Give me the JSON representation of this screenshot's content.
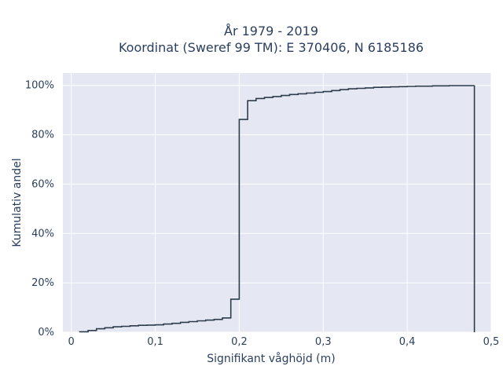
{
  "chart_data": {
    "type": "line",
    "line_shape": "step-cdf",
    "title_line1": "År 1979 - 2019",
    "title_line2": "Koordinat (Sweref 99 TM): E 370406, N 6185186",
    "xlabel": "Signifikant våghöjd (m)",
    "ylabel": "Kumulativ andel",
    "xlim": [
      -0.01,
      0.5
    ],
    "ylim": [
      0,
      1.05
    ],
    "x_ticks": [
      0,
      0.1,
      0.2,
      0.3,
      0.4,
      0.5
    ],
    "x_tick_labels": [
      "0",
      "0,1",
      "0,2",
      "0,3",
      "0,4",
      "0,5"
    ],
    "y_ticks": [
      0,
      0.2,
      0.4,
      0.6,
      0.8,
      1.0
    ],
    "y_tick_labels": [
      "0%",
      "20%",
      "40%",
      "60%",
      "80%",
      "100%"
    ],
    "grid": true,
    "plot_bgcolor": "#e5e8f2",
    "line_color": "#2d3c4c",
    "series": [
      {
        "x": [
          0.01,
          0.02,
          0.03,
          0.04,
          0.05,
          0.06,
          0.07,
          0.08,
          0.09,
          0.1,
          0.11,
          0.12,
          0.13,
          0.14,
          0.15,
          0.16,
          0.17,
          0.18,
          0.19,
          0.2,
          0.21,
          0.22,
          0.23,
          0.24,
          0.25,
          0.26,
          0.27,
          0.28,
          0.29,
          0.3,
          0.31,
          0.32,
          0.33,
          0.34,
          0.35,
          0.36,
          0.37,
          0.38,
          0.39,
          0.4,
          0.41,
          0.42,
          0.43,
          0.44,
          0.45,
          0.46,
          0.47,
          0.48
        ],
        "y": [
          0.002,
          0.007,
          0.014,
          0.018,
          0.022,
          0.024,
          0.026,
          0.028,
          0.029,
          0.03,
          0.033,
          0.036,
          0.04,
          0.043,
          0.046,
          0.049,
          0.052,
          0.058,
          0.134,
          0.862,
          0.938,
          0.947,
          0.951,
          0.955,
          0.959,
          0.963,
          0.966,
          0.969,
          0.972,
          0.975,
          0.979,
          0.983,
          0.986,
          0.988,
          0.99,
          0.992,
          0.993,
          0.994,
          0.995,
          0.996,
          0.997,
          0.997,
          0.998,
          0.998,
          0.999,
          0.999,
          0.999,
          1.0
        ]
      }
    ]
  }
}
